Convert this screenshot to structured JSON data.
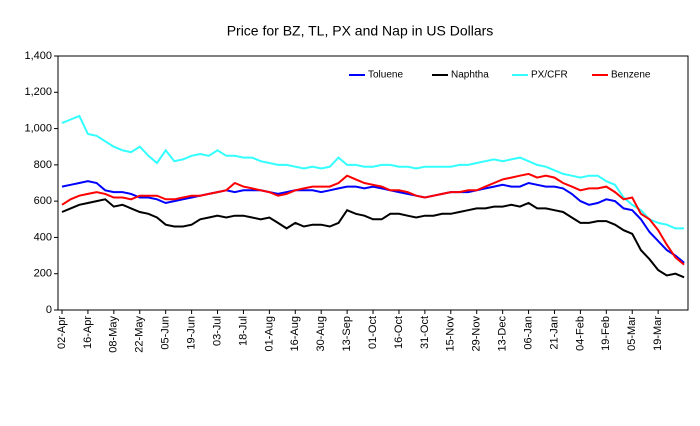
{
  "chart_data": {
    "type": "line",
    "title": "Price for BZ, TL, PX and Nap in US Dollars",
    "categories": [
      "02-Apr",
      null,
      null,
      "16-Apr",
      null,
      null,
      "08-May",
      null,
      null,
      "22-May",
      null,
      null,
      "05-Jun",
      null,
      null,
      "19-Jun",
      null,
      null,
      "03-Jul",
      null,
      null,
      "18-Jul",
      null,
      null,
      "01-Aug",
      null,
      null,
      "16-Aug",
      null,
      null,
      "30-Aug",
      null,
      null,
      "13-Sep",
      null,
      null,
      "01-Oct",
      null,
      null,
      "16-Oct",
      null,
      null,
      "31-Oct",
      null,
      null,
      "15-Nov",
      null,
      null,
      "29-Nov",
      null,
      null,
      "13-Dec",
      null,
      null,
      "06-Jan",
      null,
      null,
      "21-Jan",
      null,
      null,
      "04-Feb",
      null,
      null,
      "19-Feb",
      null,
      null,
      "05-Mar",
      null,
      null,
      "19-Mar",
      null,
      null,
      null
    ],
    "series": [
      {
        "name": "Toluene",
        "color": "#0000ff",
        "values": [
          680,
          690,
          700,
          710,
          700,
          660,
          650,
          650,
          640,
          620,
          620,
          610,
          590,
          600,
          610,
          620,
          630,
          640,
          650,
          660,
          650,
          660,
          660,
          660,
          650,
          640,
          650,
          660,
          660,
          660,
          650,
          660,
          670,
          680,
          680,
          670,
          680,
          670,
          660,
          650,
          640,
          630,
          620,
          630,
          640,
          650,
          650,
          650,
          660,
          670,
          680,
          690,
          680,
          680,
          700,
          690,
          680,
          680,
          670,
          640,
          600,
          580,
          590,
          610,
          600,
          560,
          550,
          500,
          430,
          380,
          330,
          300,
          260
        ]
      },
      {
        "name": "Naphtha",
        "color": "#000000",
        "values": [
          540,
          560,
          580,
          590,
          600,
          610,
          570,
          580,
          560,
          540,
          530,
          510,
          470,
          460,
          460,
          470,
          500,
          510,
          520,
          510,
          520,
          520,
          510,
          500,
          510,
          480,
          450,
          480,
          460,
          470,
          470,
          460,
          480,
          550,
          530,
          520,
          500,
          500,
          530,
          530,
          520,
          510,
          520,
          520,
          530,
          530,
          540,
          550,
          560,
          560,
          570,
          570,
          580,
          570,
          590,
          560,
          560,
          550,
          540,
          510,
          480,
          480,
          490,
          490,
          470,
          440,
          420,
          330,
          280,
          220,
          190,
          200,
          180
        ]
      },
      {
        "name": "PX/CFR",
        "color": "#33ffff",
        "values": [
          1030,
          1050,
          1070,
          970,
          960,
          930,
          900,
          880,
          870,
          900,
          850,
          810,
          880,
          820,
          830,
          850,
          860,
          850,
          880,
          850,
          850,
          840,
          840,
          820,
          810,
          800,
          800,
          790,
          780,
          790,
          780,
          790,
          840,
          800,
          800,
          790,
          790,
          800,
          800,
          790,
          790,
          780,
          790,
          790,
          790,
          790,
          800,
          800,
          810,
          820,
          830,
          820,
          830,
          840,
          820,
          800,
          790,
          770,
          750,
          740,
          730,
          740,
          740,
          710,
          690,
          620,
          580,
          550,
          500,
          480,
          470,
          450,
          450
        ]
      },
      {
        "name": "Benzene",
        "color": "#ff0000",
        "values": [
          580,
          610,
          630,
          640,
          650,
          640,
          620,
          620,
          610,
          630,
          630,
          630,
          610,
          610,
          620,
          630,
          630,
          640,
          650,
          660,
          700,
          680,
          670,
          660,
          650,
          630,
          640,
          660,
          670,
          680,
          680,
          680,
          700,
          740,
          720,
          700,
          690,
          680,
          660,
          660,
          650,
          630,
          620,
          630,
          640,
          650,
          650,
          660,
          660,
          680,
          700,
          720,
          730,
          740,
          750,
          730,
          740,
          730,
          700,
          680,
          660,
          670,
          670,
          680,
          650,
          610,
          620,
          530,
          500,
          440,
          360,
          290,
          250
        ]
      }
    ],
    "ylim": [
      0,
      1400
    ],
    "yticks": [
      0,
      200,
      400,
      600,
      800,
      {
        "value": 1000,
        "label": "1,000"
      },
      {
        "value": 1200,
        "label": "1,200"
      },
      {
        "value": 1400,
        "label": "1,400"
      }
    ]
  }
}
